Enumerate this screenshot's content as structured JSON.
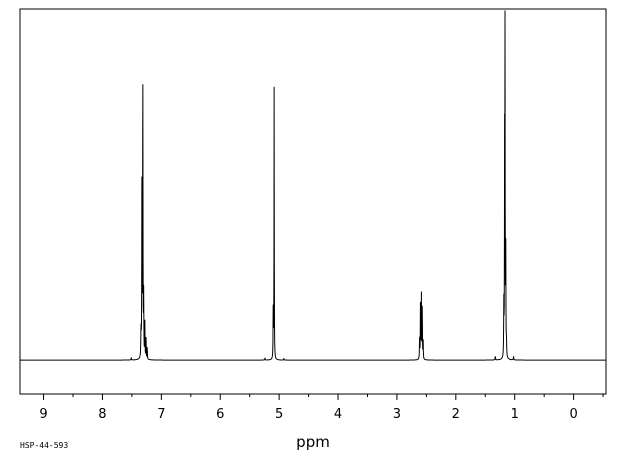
{
  "chart_data": {
    "type": "line",
    "title": "",
    "xlabel": "ppm",
    "ylabel": "",
    "xlim": [
      9.4,
      -0.55
    ],
    "ylim": [
      -0.11,
      1.14
    ],
    "x_reversed": true,
    "grid": false,
    "legend": "none",
    "x_ticks": [
      9,
      8,
      7,
      6,
      5,
      4,
      3,
      2,
      1,
      0
    ],
    "x_tick_labels": [
      "9",
      "8",
      "7",
      "6",
      "5",
      4,
      "3",
      "2",
      "1",
      "0"
    ],
    "series": [
      {
        "peaks": [
          {
            "ppm": 7.51,
            "height": 0.008,
            "width": 0.004
          },
          {
            "ppm": 7.345,
            "height": 0.09,
            "width": 0.004
          },
          {
            "ppm": 7.33,
            "height": 0.56,
            "width": 0.003
          },
          {
            "ppm": 7.315,
            "height": 1.0,
            "width": 0.003
          },
          {
            "ppm": 7.3,
            "height": 0.2,
            "width": 0.003
          },
          {
            "ppm": 7.28,
            "height": 0.12,
            "width": 0.003
          },
          {
            "ppm": 7.26,
            "height": 0.07,
            "width": 0.003
          },
          {
            "ppm": 7.24,
            "height": 0.04,
            "width": 0.003
          },
          {
            "ppm": 5.24,
            "height": 0.008,
            "width": 0.003
          },
          {
            "ppm": 5.1,
            "height": 0.2,
            "width": 0.003
          },
          {
            "ppm": 5.085,
            "height": 0.88,
            "width": 0.0025
          },
          {
            "ppm": 4.92,
            "height": 0.006,
            "width": 0.003
          },
          {
            "ppm": 2.615,
            "height": 0.07,
            "width": 0.003
          },
          {
            "ppm": 2.6,
            "height": 0.19,
            "width": 0.003
          },
          {
            "ppm": 2.585,
            "height": 0.22,
            "width": 0.003
          },
          {
            "ppm": 2.57,
            "height": 0.18,
            "width": 0.003
          },
          {
            "ppm": 2.555,
            "height": 0.06,
            "width": 0.003
          },
          {
            "ppm": 1.33,
            "height": 0.012,
            "width": 0.004
          },
          {
            "ppm": 1.185,
            "height": 0.17,
            "width": 0.003
          },
          {
            "ppm": 1.172,
            "height": 0.65,
            "width": 0.0025
          },
          {
            "ppm": 1.165,
            "height": 1.3,
            "width": 0.0025
          },
          {
            "ppm": 1.152,
            "height": 0.35,
            "width": 0.003
          },
          {
            "ppm": 1.14,
            "height": 0.05,
            "width": 0.003
          },
          {
            "ppm": 1.02,
            "height": 0.01,
            "width": 0.004
          }
        ]
      }
    ]
  },
  "footer": {
    "sample_code": "HSP-44-593"
  },
  "colors": {
    "line": "#000000",
    "background": "#ffffff"
  }
}
